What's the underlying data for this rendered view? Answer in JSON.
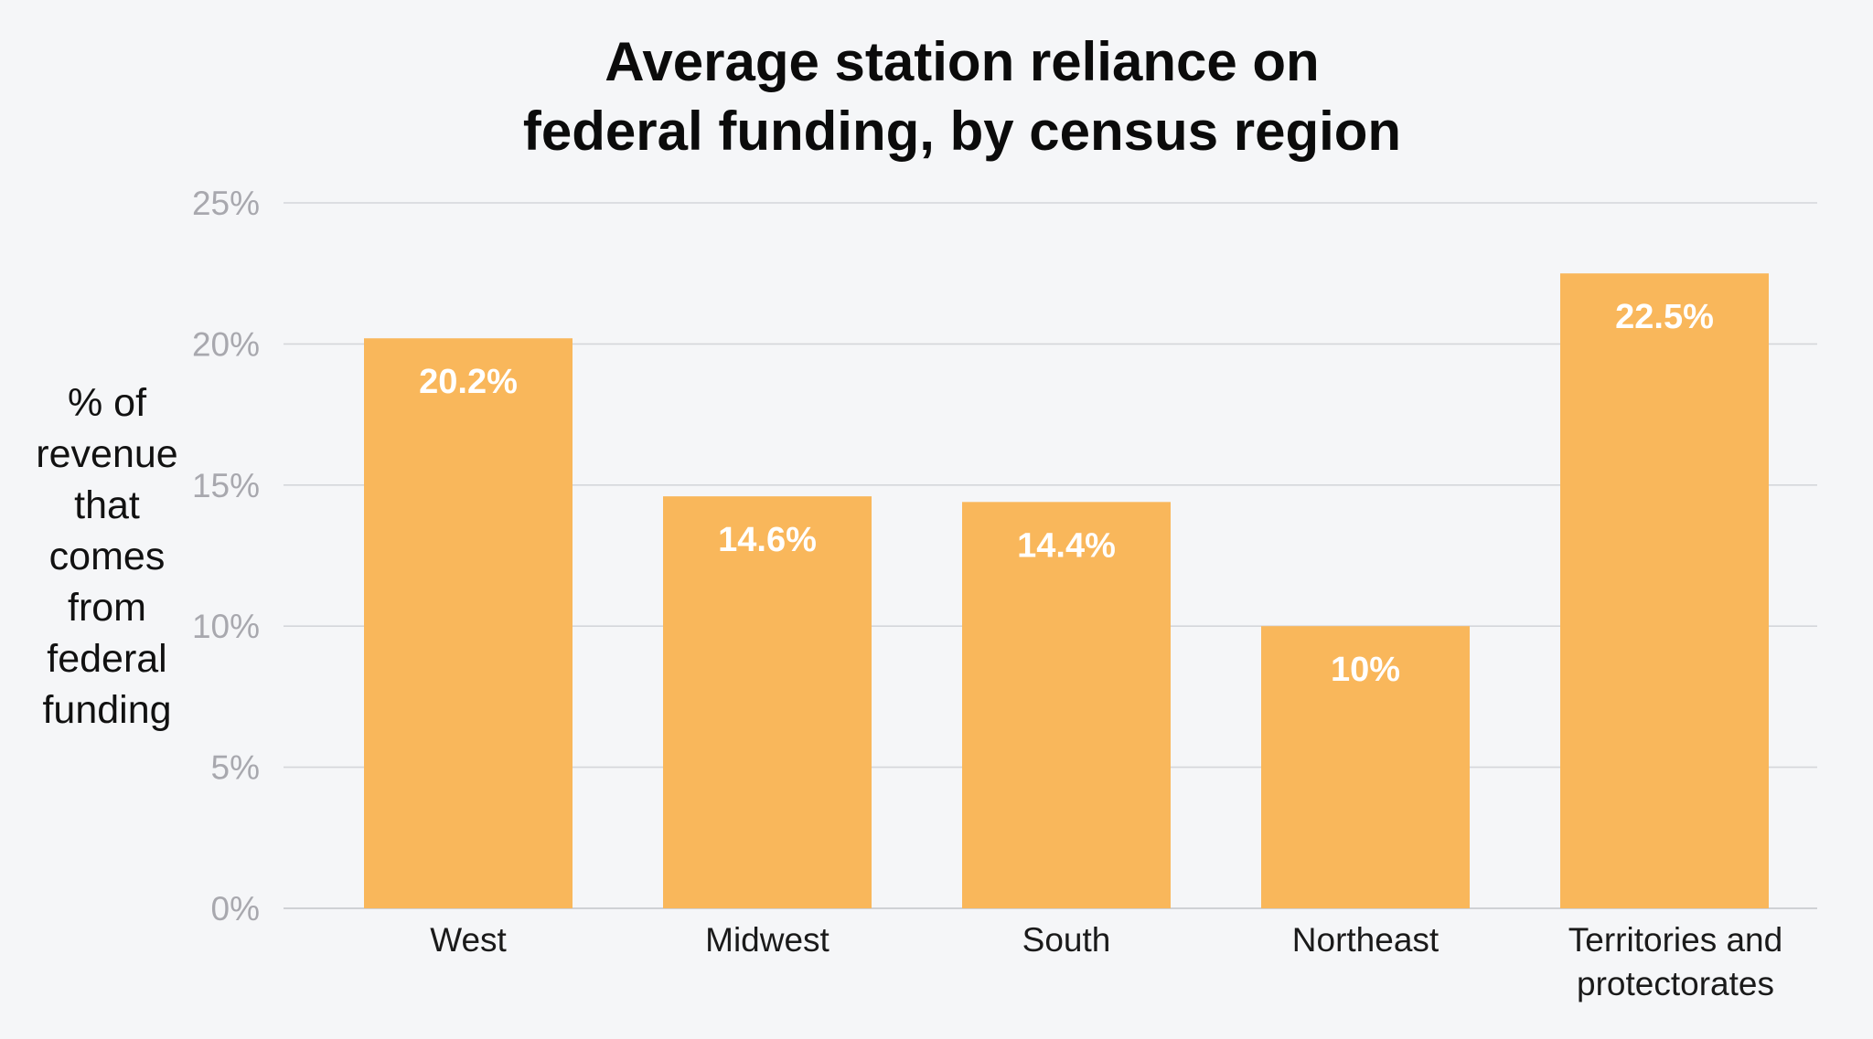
{
  "chart_data": {
    "type": "bar",
    "title": [
      "Average station reliance on",
      "federal funding, by census region"
    ],
    "ylabel": [
      "% of",
      "revenue",
      "that",
      "comes",
      "from",
      "federal",
      "funding"
    ],
    "categories": [
      [
        "West"
      ],
      [
        "Midwest"
      ],
      [
        "South"
      ],
      [
        "Northeast"
      ],
      [
        "Territories and",
        "protectorates"
      ]
    ],
    "values": [
      20.2,
      14.6,
      14.4,
      10,
      22.5
    ],
    "data_labels": [
      "20.2%",
      "14.6%",
      "14.4%",
      "10%",
      "22.5%"
    ],
    "yticks": [
      0,
      5,
      10,
      15,
      20,
      25
    ],
    "ytick_labels": [
      "0%",
      "5%",
      "10%",
      "15%",
      "20%",
      "25%"
    ],
    "ylim": [
      0,
      25
    ],
    "grid": true,
    "legend": "none",
    "bar_color": "#f9b75b"
  }
}
